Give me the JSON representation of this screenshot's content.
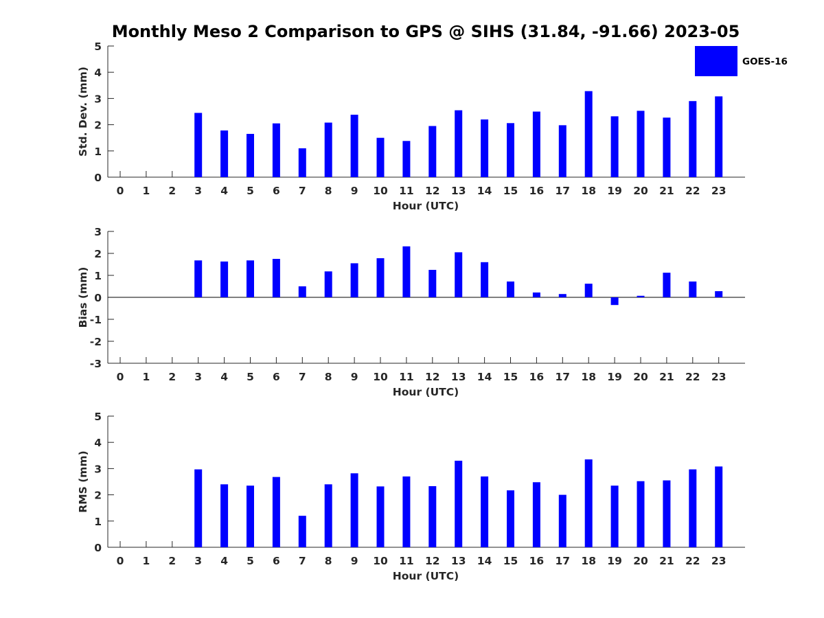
{
  "title": "Monthly Meso 2 Comparison to GPS @ SIHS (31.84, -91.66) 2023-05",
  "legend": {
    "label": "GOES-16",
    "color": "#0000ff",
    "placement": "top-right"
  },
  "bar_color": "#0000ff",
  "chart_data": [
    {
      "type": "bar",
      "name": "std-dev",
      "ylabel": "Std. Dev. (mm)",
      "xlabel": "Hour (UTC)",
      "ylim": [
        0,
        5
      ],
      "yticks": [
        0,
        1,
        2,
        3,
        4,
        5
      ],
      "categories": [
        "0",
        "1",
        "2",
        "3",
        "4",
        "5",
        "6",
        "7",
        "8",
        "9",
        "10",
        "11",
        "12",
        "13",
        "14",
        "15",
        "16",
        "17",
        "18",
        "19",
        "20",
        "21",
        "22",
        "23"
      ],
      "values": [
        null,
        null,
        null,
        2.45,
        1.78,
        1.65,
        2.05,
        1.1,
        2.08,
        2.38,
        1.5,
        1.38,
        1.95,
        2.55,
        2.2,
        2.06,
        2.5,
        1.98,
        3.28,
        2.32,
        2.53,
        2.27,
        2.9,
        3.08
      ]
    },
    {
      "type": "bar",
      "name": "bias",
      "ylabel": "Bias (mm)",
      "xlabel": "Hour (UTC)",
      "ylim": [
        -3,
        3
      ],
      "yticks": [
        -3,
        -2,
        -1,
        0,
        1,
        2,
        3
      ],
      "categories": [
        "0",
        "1",
        "2",
        "3",
        "4",
        "5",
        "6",
        "7",
        "8",
        "9",
        "10",
        "11",
        "12",
        "13",
        "14",
        "15",
        "16",
        "17",
        "18",
        "19",
        "20",
        "21",
        "22",
        "23"
      ],
      "values": [
        null,
        null,
        null,
        1.68,
        1.63,
        1.68,
        1.75,
        0.5,
        1.18,
        1.55,
        1.78,
        2.32,
        1.25,
        2.05,
        1.6,
        0.72,
        0.22,
        0.15,
        0.62,
        -0.35,
        0.07,
        1.12,
        0.72,
        0.28
      ]
    },
    {
      "type": "bar",
      "name": "rms",
      "ylabel": "RMS (mm)",
      "xlabel": "Hour (UTC)",
      "ylim": [
        0,
        5
      ],
      "yticks": [
        0,
        1,
        2,
        3,
        4,
        5
      ],
      "categories": [
        "0",
        "1",
        "2",
        "3",
        "4",
        "5",
        "6",
        "7",
        "8",
        "9",
        "10",
        "11",
        "12",
        "13",
        "14",
        "15",
        "16",
        "17",
        "18",
        "19",
        "20",
        "21",
        "22",
        "23"
      ],
      "values": [
        null,
        null,
        null,
        2.97,
        2.4,
        2.35,
        2.68,
        1.2,
        2.4,
        2.82,
        2.32,
        2.7,
        2.33,
        3.3,
        2.7,
        2.17,
        2.48,
        2.0,
        3.35,
        2.35,
        2.52,
        2.55,
        2.97,
        3.08
      ]
    }
  ]
}
